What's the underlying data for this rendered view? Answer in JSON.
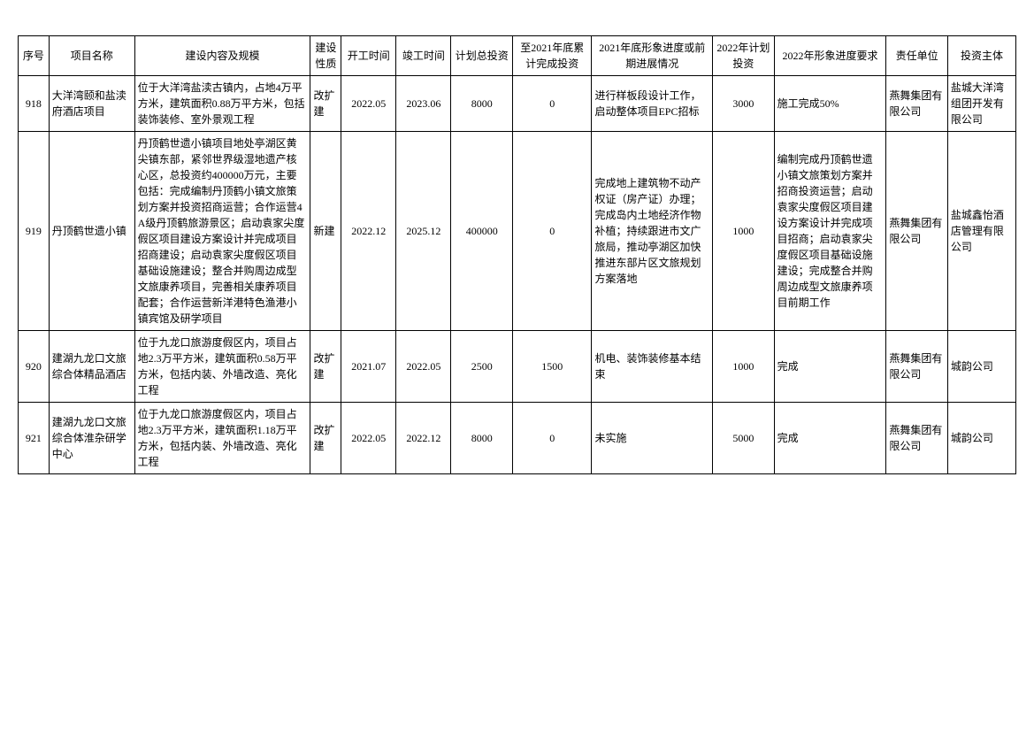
{
  "table": {
    "columns": [
      {
        "key": "seq",
        "label": "序号",
        "class": "col-seq",
        "align": "center"
      },
      {
        "key": "name",
        "label": "项目名称",
        "class": "col-name",
        "align": "left"
      },
      {
        "key": "content",
        "label": "建设内容及规模",
        "class": "col-content",
        "align": "left"
      },
      {
        "key": "nature",
        "label": "建设性质",
        "class": "col-nature",
        "align": "left"
      },
      {
        "key": "start",
        "label": "开工时间",
        "class": "col-start",
        "align": "center"
      },
      {
        "key": "end",
        "label": "竣工时间",
        "class": "col-end",
        "align": "center"
      },
      {
        "key": "total",
        "label": "计划总投资",
        "class": "col-total",
        "align": "center"
      },
      {
        "key": "cum",
        "label": "至2021年底累计完成投资",
        "class": "col-cum",
        "align": "center"
      },
      {
        "key": "progress",
        "label": "2021年底形象进度或前期进展情况",
        "class": "col-progress",
        "align": "left"
      },
      {
        "key": "plan2022",
        "label": "2022年计划投资",
        "class": "col-plan2022",
        "align": "center"
      },
      {
        "key": "req2022",
        "label": "2022年形象进度要求",
        "class": "col-req2022",
        "align": "left"
      },
      {
        "key": "unit",
        "label": "责任单位",
        "class": "col-unit",
        "align": "left"
      },
      {
        "key": "investor",
        "label": "投资主体",
        "class": "col-investor",
        "align": "left"
      }
    ],
    "rows": [
      {
        "seq": "918",
        "name": "大洋湾颐和盐渎府酒店项目",
        "content": "位于大洋湾盐渎古镇内，占地4万平方米，建筑面积0.88万平方米，包括装饰装修、室外景观工程",
        "nature": "改扩建",
        "start": "2022.05",
        "end": "2023.06",
        "total": "8000",
        "cum": "0",
        "progress": "进行样板段设计工作，启动整体项目EPC招标",
        "plan2022": "3000",
        "req2022": "施工完成50%",
        "unit": "燕舞集团有限公司",
        "investor": "盐城大洋湾组团开发有限公司"
      },
      {
        "seq": "919",
        "name": "丹顶鹤世遗小镇",
        "content": "丹顶鹤世遗小镇项目地处亭湖区黄尖镇东部，紧邻世界级湿地遗产核心区，总投资约400000万元，主要包括：完成编制丹顶鹤小镇文旅策划方案并投资招商运营；合作运营4A级丹顶鹤旅游景区；启动袁家尖度假区项目建设方案设计并完成项目招商建设；启动袁家尖度假区项目基础设施建设；整合并购周边成型文旅康养项目，完善相关康养项目配套；合作运营新洋港特色渔港小镇宾馆及研学项目",
        "nature": "新建",
        "start": "2022.12",
        "end": "2025.12",
        "total": "400000",
        "cum": "0",
        "progress": "完成地上建筑物不动产权证（房产证）办理；完成岛内土地经济作物补植；持续跟进市文广旅局，推动亭湖区加快推进东部片区文旅规划方案落地",
        "plan2022": "1000",
        "req2022": "编制完成丹顶鹤世遗小镇文旅策划方案并招商投资运营；启动袁家尖度假区项目建设方案设计并完成项目招商；启动袁家尖度假区项目基础设施建设；完成整合并购周边成型文旅康养项目前期工作",
        "unit": "燕舞集团有限公司",
        "investor": "盐城鑫怡酒店管理有限公司"
      },
      {
        "seq": "920",
        "name": "建湖九龙口文旅综合体精品酒店",
        "content": "位于九龙口旅游度假区内，项目占地2.3万平方米，建筑面积0.58万平方米，包括内装、外墙改造、亮化工程",
        "nature": "改扩建",
        "start": "2021.07",
        "end": "2022.05",
        "total": "2500",
        "cum": "1500",
        "progress": "机电、装饰装修基本结束",
        "plan2022": "1000",
        "req2022": "完成",
        "unit": "燕舞集团有限公司",
        "investor": "城韵公司"
      },
      {
        "seq": "921",
        "name": "建湖九龙口文旅综合体淮杂研学中心",
        "content": "位于九龙口旅游度假区内，项目占地2.3万平方米，建筑面积1.18万平方米，包括内装、外墙改造、亮化工程",
        "nature": "改扩建",
        "start": "2022.05",
        "end": "2022.12",
        "total": "8000",
        "cum": "0",
        "progress": "未实施",
        "plan2022": "5000",
        "req2022": "完成",
        "unit": "燕舞集团有限公司",
        "investor": "城韵公司"
      }
    ]
  },
  "style": {
    "border_color": "#000000",
    "background_color": "#ffffff",
    "font_size": 12,
    "font_family": "SimSun"
  }
}
